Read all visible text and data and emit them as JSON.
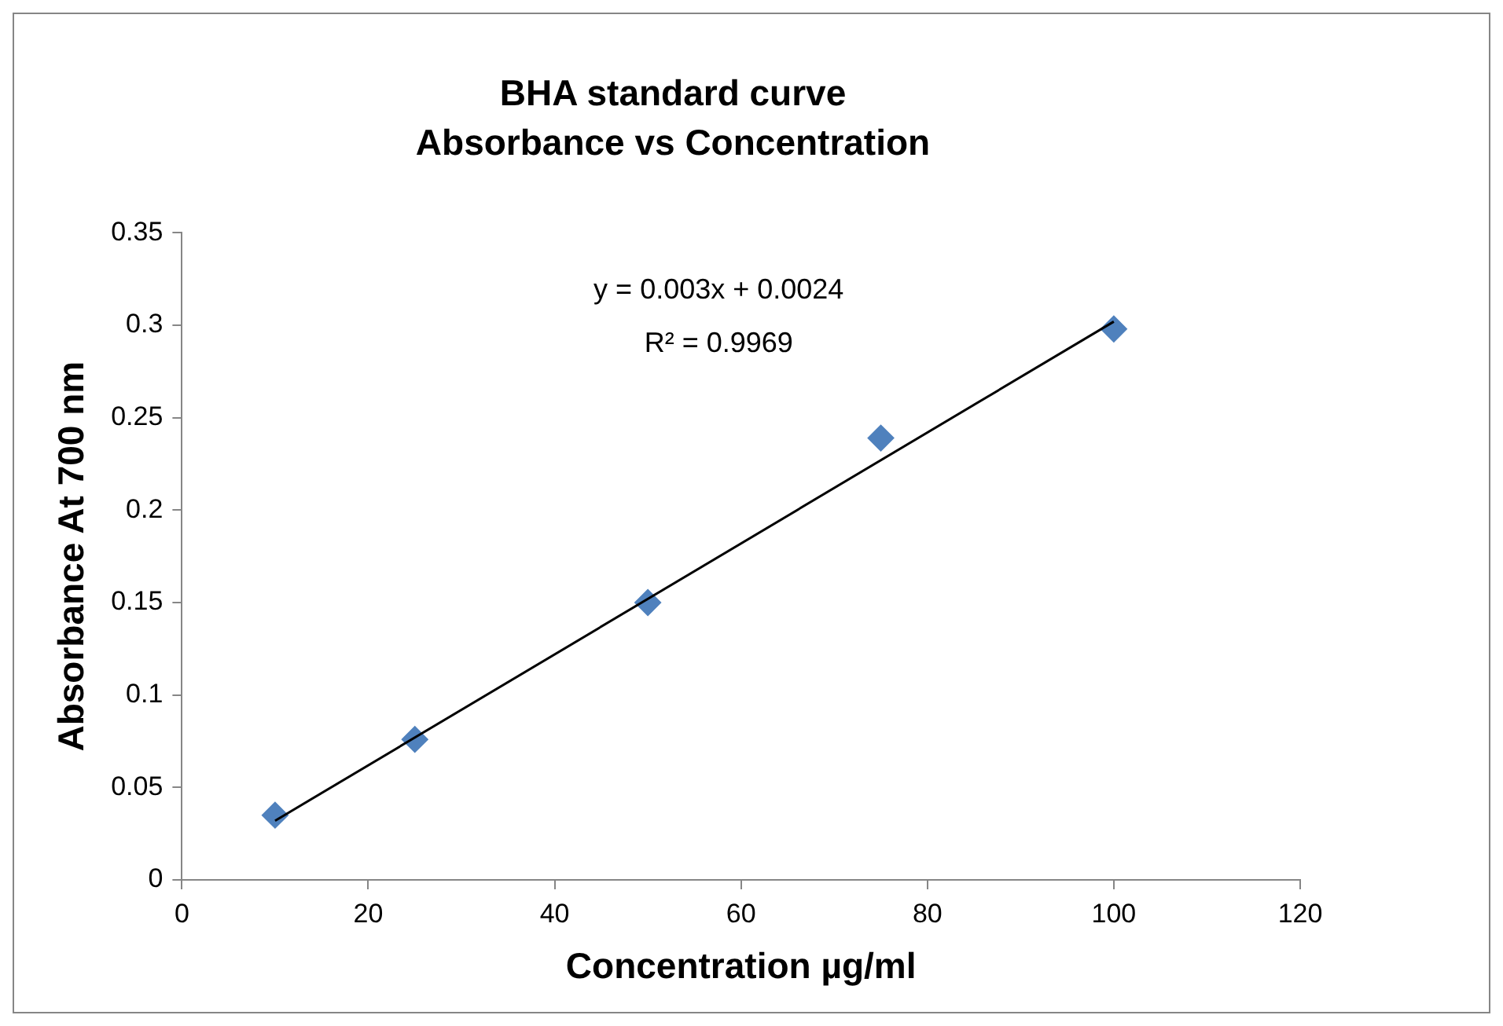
{
  "chart_data": {
    "type": "scatter",
    "title": "BHA standard curve",
    "subtitle": "Absorbance vs Concentration",
    "xlabel": "Concentration µg/ml",
    "ylabel": "Absorbance At 700 nm",
    "series": [
      {
        "type": "scatter",
        "color": "#4f81bd",
        "marker": "diamond",
        "x": [
          10,
          25,
          50,
          75,
          100
        ],
        "values": [
          0.035,
          0.076,
          0.15,
          0.239,
          0.298
        ]
      },
      {
        "type": "line",
        "color": "#000000",
        "marker": "none",
        "line_style": "solid",
        "x": [
          10,
          100
        ],
        "values": [
          0.032,
          0.302
        ]
      }
    ],
    "xlim": [
      0,
      120
    ],
    "xticks": [
      0,
      20,
      40,
      60,
      80,
      100,
      120
    ],
    "ylim": [
      0,
      0.35
    ],
    "yticks": [
      0,
      0.05,
      0.1,
      0.15,
      0.2,
      0.25,
      0.3,
      0.35
    ],
    "annotations": [
      "y = 0.003x + 0.0024",
      "R² = 0.9969"
    ],
    "grid": false,
    "legend": false
  }
}
